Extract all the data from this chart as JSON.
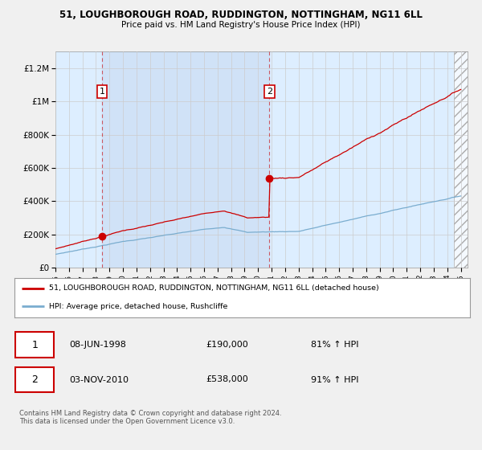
{
  "title": "51, LOUGHBOROUGH ROAD, RUDDINGTON, NOTTINGHAM, NG11 6LL",
  "subtitle": "Price paid vs. HM Land Registry's House Price Index (HPI)",
  "ylabel_ticks": [
    "£0",
    "£200K",
    "£400K",
    "£600K",
    "£800K",
    "£1M",
    "£1.2M"
  ],
  "ytick_values": [
    0,
    200000,
    400000,
    600000,
    800000,
    1000000,
    1200000
  ],
  "ylim": [
    0,
    1300000
  ],
  "x_start_year": 1995,
  "x_end_year": 2025,
  "red_line_color": "#cc0000",
  "blue_line_color": "#7aadcf",
  "plot_bg_color": "#ddeeff",
  "plot_bg_alpha": 0.35,
  "legend_red_label": "51, LOUGHBOROUGH ROAD, RUDDINGTON, NOTTINGHAM, NG11 6LL (detached house)",
  "legend_blue_label": "HPI: Average price, detached house, Rushcliffe",
  "purchase1_date": "08-JUN-1998",
  "purchase1_price": "£190,000",
  "purchase1_hpi": "81% ↑ HPI",
  "purchase1_year": 1998.44,
  "purchase1_value": 190000,
  "purchase2_date": "03-NOV-2010",
  "purchase2_price": "£538,000",
  "purchase2_hpi": "91% ↑ HPI",
  "purchase2_year": 2010.84,
  "purchase2_value": 538000,
  "footnote": "Contains HM Land Registry data © Crown copyright and database right 2024.\nThis data is licensed under the Open Government Licence v3.0.",
  "bg_color": "#f0f0f0",
  "grid_color": "#cccccc"
}
